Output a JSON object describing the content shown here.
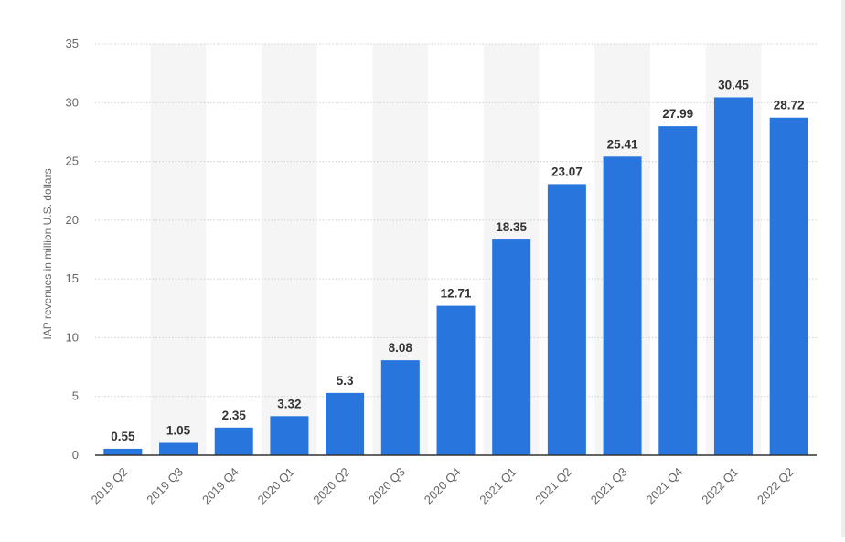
{
  "chart_data": {
    "type": "bar",
    "title": "",
    "xlabel": "",
    "ylabel": "IAP revenues in million U.S. dollars",
    "categories": [
      "2019 Q2",
      "2019 Q3",
      "2019 Q4",
      "2020 Q1",
      "2020 Q2",
      "2020 Q3",
      "2020 Q4",
      "2021 Q1",
      "2021 Q2",
      "2021 Q3",
      "2021 Q4",
      "2022 Q1",
      "2022 Q2"
    ],
    "values": [
      0.55,
      1.05,
      2.35,
      3.32,
      5.3,
      8.08,
      12.71,
      18.35,
      23.07,
      25.41,
      27.99,
      30.45,
      28.72
    ],
    "value_labels": [
      "0.55",
      "1.05",
      "2.35",
      "3.32",
      "5.3",
      "8.08",
      "12.71",
      "18.35",
      "23.07",
      "25.41",
      "27.99",
      "30.45",
      "28.72"
    ],
    "ylim": [
      0,
      35
    ],
    "yticks": [
      0,
      5,
      10,
      15,
      20,
      25,
      30,
      35
    ],
    "grid": true,
    "legend": "none",
    "colors": {
      "bar": "#2876dd",
      "band": "#f5f5f5",
      "grid": "#cfcfcf",
      "axis": "#333333",
      "tick_text": "#666666",
      "label_text": "#333333"
    }
  }
}
